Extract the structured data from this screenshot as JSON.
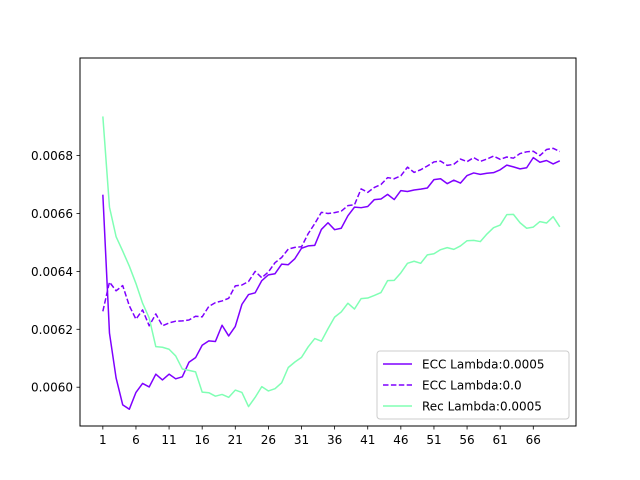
{
  "chart_data": {
    "type": "line",
    "title": "",
    "xlabel": "",
    "ylabel": "",
    "xlim": [
      -2.45,
      72.45
    ],
    "ylim": [
      0.005866,
      0.007137
    ],
    "xticks": [
      1,
      6,
      11,
      16,
      21,
      26,
      31,
      36,
      41,
      46,
      51,
      56,
      61,
      66
    ],
    "yticks": [
      0.006,
      0.0062,
      0.0064,
      0.0066,
      0.0068
    ],
    "ytick_labels": [
      "0.0060",
      "0.0062",
      "0.0064",
      "0.0066",
      "0.0068"
    ],
    "grid": false,
    "legend_position": "lower-right",
    "x": [
      1,
      2,
      3,
      4,
      5,
      6,
      7,
      8,
      9,
      10,
      11,
      12,
      13,
      14,
      15,
      16,
      17,
      18,
      19,
      20,
      21,
      22,
      23,
      24,
      25,
      26,
      27,
      28,
      29,
      30,
      31,
      32,
      33,
      34,
      35,
      36,
      37,
      38,
      39,
      40,
      41,
      42,
      43,
      44,
      45,
      46,
      47,
      48,
      49,
      50,
      51,
      52,
      53,
      54,
      55,
      56,
      57,
      58,
      59,
      60,
      61,
      62,
      63,
      64,
      65,
      66,
      67,
      68,
      69,
      70
    ],
    "series": [
      {
        "name": "ECC Lambda:0.0005",
        "color": "#7f00ff",
        "dash": "solid",
        "values": [
          0.006665,
          0.006187,
          0.006032,
          0.005939,
          0.005924,
          0.005982,
          0.006013,
          0.006001,
          0.006045,
          0.006025,
          0.006045,
          0.006029,
          0.006036,
          0.006086,
          0.006102,
          0.006145,
          0.00616,
          0.006158,
          0.006214,
          0.006177,
          0.00621,
          0.006286,
          0.00632,
          0.006326,
          0.006368,
          0.006388,
          0.006392,
          0.006425,
          0.006423,
          0.006444,
          0.00648,
          0.006488,
          0.00649,
          0.006545,
          0.006568,
          0.006544,
          0.006549,
          0.006592,
          0.006622,
          0.00662,
          0.006624,
          0.006648,
          0.00665,
          0.006666,
          0.006648,
          0.006679,
          0.006676,
          0.006681,
          0.006684,
          0.006688,
          0.006717,
          0.00672,
          0.006703,
          0.006715,
          0.006705,
          0.006731,
          0.00674,
          0.006735,
          0.006739,
          0.006741,
          0.006751,
          0.006767,
          0.006761,
          0.006754,
          0.006758,
          0.006793,
          0.006777,
          0.006783,
          0.006771,
          0.006782
        ]
      },
      {
        "name": "ECC Lambda:0.0",
        "color": "#7f00ff",
        "dash": "dashed",
        "values": [
          0.006262,
          0.006363,
          0.006333,
          0.006351,
          0.006281,
          0.006235,
          0.006267,
          0.006212,
          0.006253,
          0.006212,
          0.006222,
          0.006228,
          0.006229,
          0.006232,
          0.006245,
          0.006243,
          0.006279,
          0.006292,
          0.006298,
          0.006307,
          0.00635,
          0.006353,
          0.006365,
          0.0064,
          0.006378,
          0.006398,
          0.00643,
          0.006448,
          0.006477,
          0.006483,
          0.006485,
          0.00653,
          0.006565,
          0.006604,
          0.0066,
          0.006603,
          0.006608,
          0.006627,
          0.00663,
          0.006685,
          0.006673,
          0.00669,
          0.0067,
          0.006724,
          0.00672,
          0.00673,
          0.00676,
          0.006742,
          0.006751,
          0.006764,
          0.006778,
          0.006781,
          0.006766,
          0.00677,
          0.006788,
          0.006779,
          0.006793,
          0.00678,
          0.006788,
          0.006798,
          0.006787,
          0.006795,
          0.006791,
          0.006807,
          0.006813,
          0.006815,
          0.0068,
          0.006821,
          0.006825,
          0.006814
        ]
      },
      {
        "name": "Rec Lambda:0.0005",
        "color": "#80ffb4",
        "dash": "solid",
        "values": [
          0.006935,
          0.006622,
          0.00652,
          0.00647,
          0.006418,
          0.006358,
          0.00629,
          0.006239,
          0.00614,
          0.006138,
          0.006131,
          0.006108,
          0.006063,
          0.006058,
          0.006053,
          0.005983,
          0.005981,
          0.005969,
          0.005975,
          0.005965,
          0.00599,
          0.005982,
          0.005933,
          0.005965,
          0.006002,
          0.005987,
          0.005995,
          0.006015,
          0.006068,
          0.006087,
          0.006103,
          0.006139,
          0.006168,
          0.006159,
          0.006202,
          0.006242,
          0.00626,
          0.00629,
          0.00627,
          0.006306,
          0.006308,
          0.006317,
          0.006327,
          0.006368,
          0.006369,
          0.006395,
          0.006428,
          0.006435,
          0.006428,
          0.006457,
          0.006461,
          0.006475,
          0.006482,
          0.006476,
          0.006488,
          0.006506,
          0.006507,
          0.006503,
          0.006529,
          0.006551,
          0.00656,
          0.006596,
          0.006597,
          0.006568,
          0.006549,
          0.006553,
          0.006572,
          0.006567,
          0.006589,
          0.006554
        ]
      }
    ]
  }
}
